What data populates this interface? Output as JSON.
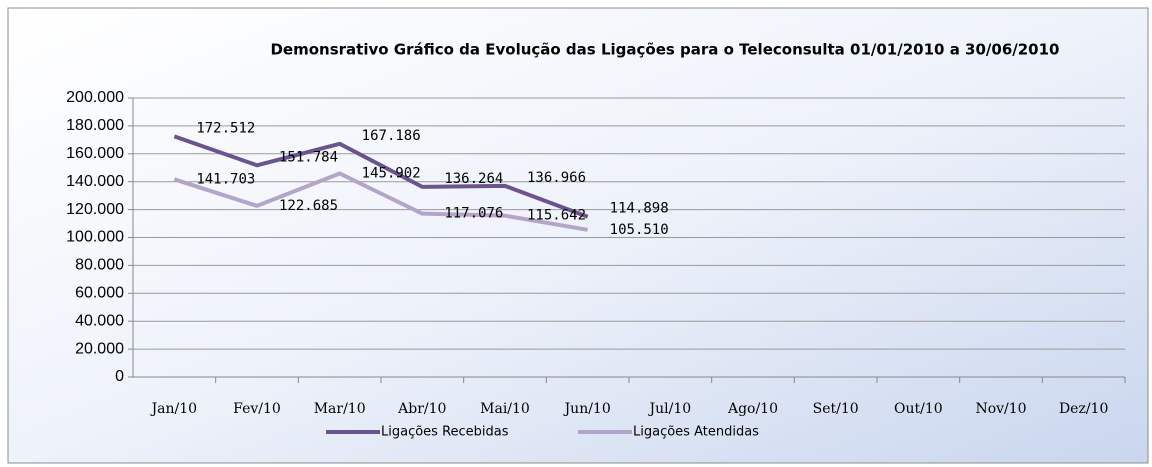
{
  "chart_data": {
    "type": "line",
    "title": "Demonsrativo Gráfico da Evolução das Ligações para o Teleconsulta 01/01/2010 a 30/06/2010",
    "categories": [
      "Jan/10",
      "Fev/10",
      "Mar/10",
      "Abr/10",
      "Mai/10",
      "Jun/10",
      "Jul/10",
      "Ago/10",
      "Set/10",
      "Out/10",
      "Nov/10",
      "Dez/10"
    ],
    "series": [
      {
        "name": "Ligações Recebidas",
        "color": "#6b5391",
        "values": [
          172512,
          151784,
          167186,
          136264,
          136966,
          114898,
          null,
          null,
          null,
          null,
          null,
          null
        ],
        "value_labels": [
          "172.512",
          "151.784",
          "167.186",
          "136.264",
          "136.966",
          "114.898",
          null,
          null,
          null,
          null,
          null,
          null
        ]
      },
      {
        "name": "Ligações Atendidas",
        "color": "#b3a5c9",
        "values": [
          141703,
          122685,
          145902,
          117076,
          115642,
          105510,
          null,
          null,
          null,
          null,
          null,
          null
        ],
        "value_labels": [
          "141.703",
          "122.685",
          "145.902",
          "117.076",
          "115.642",
          "105.510",
          null,
          null,
          null,
          null,
          null,
          null
        ]
      }
    ],
    "ylim": [
      0,
      200000
    ],
    "yticks": [
      0,
      {
        "value": 20000,
        "label": "20.000"
      },
      {
        "value": 40000,
        "label": "40.000"
      },
      {
        "value": 60000,
        "label": "60.000"
      },
      {
        "value": 80000,
        "label": "80.000"
      },
      {
        "value": 100000,
        "label": "100.000"
      },
      {
        "value": 120000,
        "label": "120.000"
      },
      {
        "value": 140000,
        "label": "140.000"
      },
      {
        "value": 160000,
        "label": "160.000"
      },
      {
        "value": 180000,
        "label": "180.000"
      },
      {
        "value": 200000,
        "label": "200.000"
      }
    ],
    "grid": true,
    "legend": "bottom"
  }
}
